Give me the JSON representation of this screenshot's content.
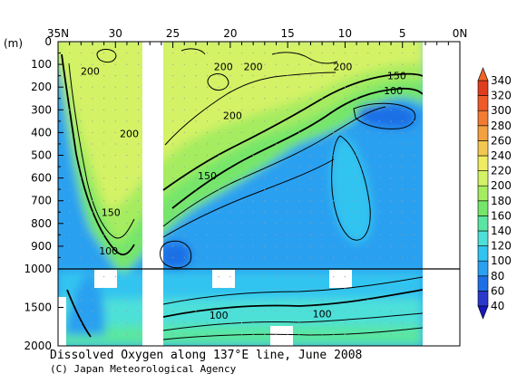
{
  "chart_data": {
    "type": "heatmap",
    "title": "Dissolved Oxygen along 137°E line, June 2008",
    "credit": "(C) Japan Meteorological Agency",
    "ylabel": "(m)",
    "x_ticks": [
      "35N",
      "30",
      "25",
      "20",
      "15",
      "10",
      "5",
      "0N"
    ],
    "x_tick_values": [
      35,
      30,
      25,
      20,
      15,
      10,
      5,
      0
    ],
    "y_ticks_upper": [
      "0",
      "100",
      "200",
      "300",
      "400",
      "500",
      "600",
      "700",
      "800",
      "900",
      "1000"
    ],
    "y_ticks_upper_values": [
      0,
      100,
      200,
      300,
      400,
      500,
      600,
      700,
      800,
      900,
      1000
    ],
    "y_ticks_lower": [
      "1500",
      "2000"
    ],
    "y_ticks_lower_values": [
      1500,
      2000
    ],
    "contour_labels": [
      {
        "text": "200",
        "lat": 32.2,
        "depth": 130
      },
      {
        "text": "200",
        "lat": 20.6,
        "depth": 110
      },
      {
        "text": "200",
        "lat": 18.0,
        "depth": 110
      },
      {
        "text": "200",
        "lat": 10.2,
        "depth": 110
      },
      {
        "text": "200",
        "lat": 19.8,
        "depth": 325
      },
      {
        "text": "200",
        "lat": 28.8,
        "depth": 405
      },
      {
        "text": "150",
        "lat": 5.5,
        "depth": 150
      },
      {
        "text": "100",
        "lat": 5.8,
        "depth": 215
      },
      {
        "text": "150",
        "lat": 22.0,
        "depth": 590
      },
      {
        "text": "150",
        "lat": 30.4,
        "depth": 750
      },
      {
        "text": "100",
        "lat": 30.6,
        "depth": 920
      },
      {
        "text": "100",
        "lat": 21.0,
        "depth": 1600
      },
      {
        "text": "100",
        "lat": 12.0,
        "depth": 1580
      }
    ],
    "colorbar": {
      "labels": [
        "40",
        "60",
        "80",
        "100",
        "120",
        "140",
        "160",
        "180",
        "200",
        "220",
        "240",
        "260",
        "280",
        "300",
        "320",
        "340"
      ],
      "values": [
        40,
        60,
        80,
        100,
        120,
        140,
        160,
        180,
        200,
        220,
        240,
        260,
        280,
        300,
        320,
        340
      ],
      "colors": [
        "#2b38cc",
        "#1e6fe6",
        "#2aa0f0",
        "#32c4f0",
        "#4ee0d8",
        "#5ae6a2",
        "#76e66a",
        "#a6ec60",
        "#d4f266",
        "#f0ec62",
        "#f2c850",
        "#f2a040",
        "#f27c32",
        "#ee5a28",
        "#e03c1e"
      ],
      "under_color": "#1818b8",
      "over_color": "#f06424"
    }
  }
}
